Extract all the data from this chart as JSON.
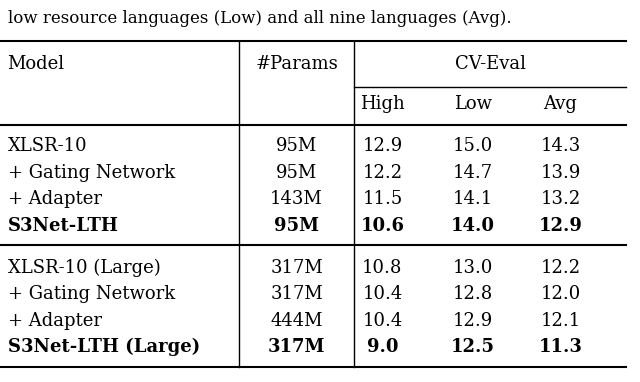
{
  "caption": "low resource languages (Low) and all nine languages (Avg).",
  "rows": [
    [
      "XLSR-10",
      "95M",
      "12.9",
      "15.0",
      "14.3",
      false
    ],
    [
      "+ Gating Network",
      "95M",
      "12.2",
      "14.7",
      "13.9",
      false
    ],
    [
      "+ Adapter",
      "143M",
      "11.5",
      "14.1",
      "13.2",
      false
    ],
    [
      "S3Net-LTH",
      "95M",
      "10.6",
      "14.0",
      "12.9",
      true
    ],
    [
      "XLSR-10 (Large)",
      "317M",
      "10.8",
      "13.0",
      "12.2",
      false
    ],
    [
      "+ Gating Network",
      "317M",
      "10.4",
      "12.8",
      "12.0",
      false
    ],
    [
      "+ Adapter",
      "444M",
      "10.4",
      "12.9",
      "12.1",
      false
    ],
    [
      "S3Net-LTH (Large)",
      "317M",
      "9.0",
      "12.5",
      "11.3",
      true
    ]
  ],
  "bg_color": "#ffffff",
  "text_color": "#000000",
  "fontsize": 13
}
